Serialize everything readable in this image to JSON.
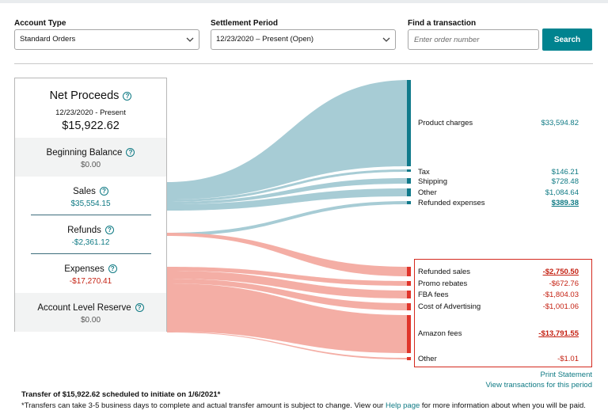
{
  "filters": {
    "account_type": {
      "label": "Account Type",
      "value": "Standard Orders"
    },
    "settlement_period": {
      "label": "Settlement Period",
      "value": "12/23/2020 – Present (Open)"
    },
    "find_transaction": {
      "label": "Find a transaction",
      "placeholder": "Enter order number",
      "button": "Search"
    }
  },
  "summary": {
    "net_proceeds": {
      "title": "Net Proceeds",
      "range": "12/23/2020 - Present",
      "amount": "$15,922.62"
    },
    "beginning_balance": {
      "title": "Beginning Balance",
      "amount": "$0.00"
    },
    "sales": {
      "title": "Sales",
      "amount": "$35,554.15"
    },
    "refunds": {
      "title": "Refunds",
      "amount": "-$2,361.12"
    },
    "expenses": {
      "title": "Expenses",
      "amount": "-$17,270.41"
    },
    "account_level_reserve": {
      "title": "Account Level Reserve",
      "amount": "$0.00"
    }
  },
  "breakdown": {
    "positive": [
      {
        "label": "Product charges",
        "amount": "$33,594.82"
      },
      {
        "label": "Tax",
        "amount": "$146.21"
      },
      {
        "label": "Shipping",
        "amount": "$728.48"
      },
      {
        "label": "Other",
        "amount": "$1,084.64"
      },
      {
        "label": "Refunded expenses",
        "amount": "$389.38"
      }
    ],
    "negative": [
      {
        "label": "Refunded sales",
        "amount": "-$2,750.50"
      },
      {
        "label": "Promo rebates",
        "amount": "-$672.76"
      },
      {
        "label": "FBA fees",
        "amount": "-$1,804.03"
      },
      {
        "label": "Cost of Advertising",
        "amount": "-$1,001.06"
      },
      {
        "label": "Amazon fees",
        "amount": "-$13,791.55"
      },
      {
        "label": "Other",
        "amount": "-$1.01"
      }
    ]
  },
  "links": {
    "print_statement": "Print Statement",
    "view_transactions": "View transactions for this period"
  },
  "footer": {
    "transfer": "Transfer of $15,922.62 scheduled to initiate on 1/6/2021*",
    "note_before": "*Transfers can take 3-5 business days to complete and actual transfer amount is subject to change. View our ",
    "help_link": "Help page",
    "note_after": " for more information about when you will be paid."
  },
  "colors": {
    "teal_accent": "#00838f",
    "positive_flow": "#a7ccd5",
    "negative_flow": "#f4aea5",
    "negative_text": "#c41f10",
    "positive_bar": "#117a8b",
    "negative_bar": "#e0352b"
  }
}
